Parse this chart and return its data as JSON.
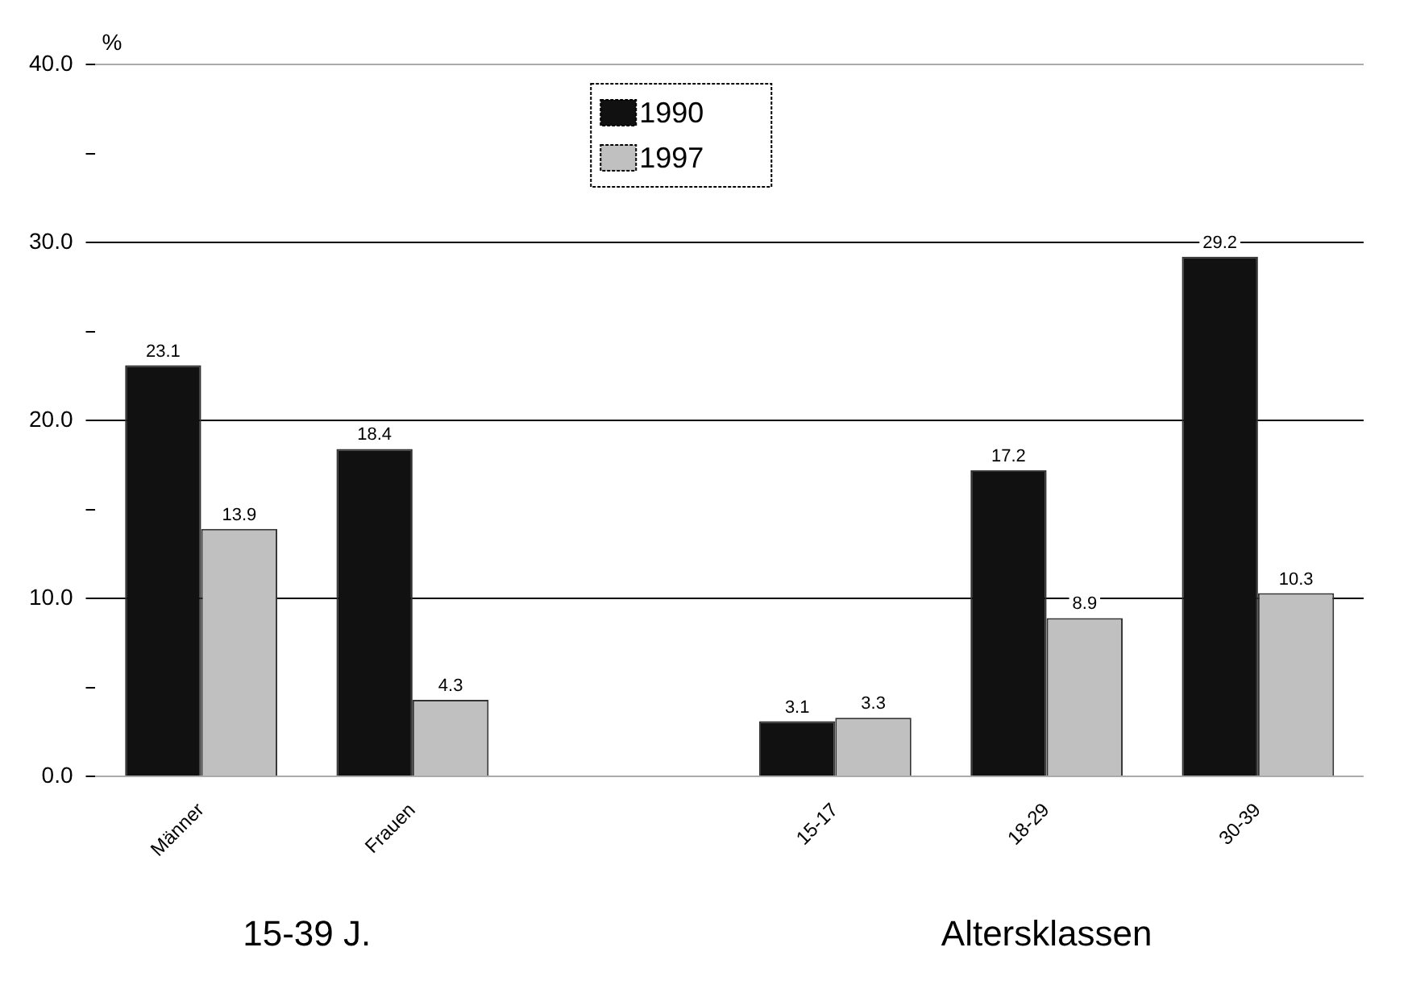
{
  "chart_data": {
    "type": "bar",
    "ylabel": "%",
    "categories": [
      "Männer",
      "Frauen",
      null,
      "15-17",
      "18-29",
      "30-39"
    ],
    "series": [
      {
        "name": "1990",
        "color": "#111111",
        "values": [
          23.1,
          18.4,
          null,
          3.1,
          17.2,
          29.2
        ]
      },
      {
        "name": "1997",
        "color": "#c0c0c0",
        "values": [
          13.9,
          4.3,
          null,
          3.3,
          8.9,
          10.3
        ]
      }
    ],
    "ylim": [
      0,
      40
    ],
    "yticks": [
      {
        "value": 0,
        "label": "0.0"
      },
      {
        "value": 5,
        "label": null
      },
      {
        "value": 10,
        "label": "10.0"
      },
      {
        "value": 15,
        "label": null
      },
      {
        "value": 20,
        "label": "20.0"
      },
      {
        "value": 25,
        "label": null
      },
      {
        "value": 30,
        "label": "30.0"
      },
      {
        "value": 35,
        "label": null
      },
      {
        "value": 40,
        "label": "40.0"
      }
    ],
    "grid": "y",
    "legend": "top",
    "data_labels": true,
    "annotations": [
      "15-39 J.",
      "Altersklassen"
    ]
  }
}
